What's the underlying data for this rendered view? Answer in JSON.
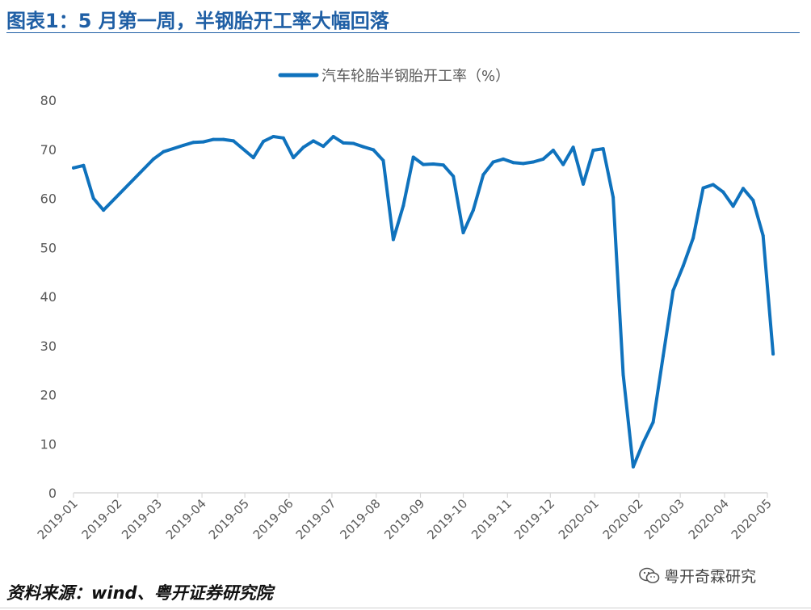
{
  "header": {
    "title": "图表1：5 月第一周，半钢胎开工率大幅回落"
  },
  "footer": {
    "source": "资料来源：wind、粤开证券研究院",
    "watermark": "粤开奇霖研究"
  },
  "colors": {
    "accent": "#1f5fa5",
    "line": "#0f72bd",
    "axis": "#d9d9d9",
    "tick_text": "#595959"
  },
  "icons": {
    "watermark_icon": "wechat-icon"
  },
  "chart_data": {
    "type": "line",
    "legend_position": "top-center",
    "grid": false,
    "ylim": [
      0,
      80
    ],
    "yticks": [
      "0",
      "10",
      "20",
      "30",
      "40",
      "50",
      "60",
      "70",
      "80"
    ],
    "xlim": [
      "2019-01-01",
      "2020-05-01"
    ],
    "xticks": [
      "2019-01",
      "2019-02",
      "2019-03",
      "2019-04",
      "2019-05",
      "2019-06",
      "2019-07",
      "2019-08",
      "2019-09",
      "2019-10",
      "2019-11",
      "2019-12",
      "2020-01",
      "2020-02",
      "2020-03",
      "2020-04",
      "2020-05"
    ],
    "series": [
      {
        "name": "汽车轮胎半钢胎开工率（%）",
        "color": "#0f72bd",
        "points": [
          [
            "2019-01-01",
            66.2
          ],
          [
            "2019-01-08",
            66.7
          ],
          [
            "2019-01-15",
            60.0
          ],
          [
            "2019-01-22",
            57.6
          ],
          [
            "2019-02-26",
            68.0
          ],
          [
            "2019-03-05",
            69.5
          ],
          [
            "2019-03-19",
            70.8
          ],
          [
            "2019-03-26",
            71.4
          ],
          [
            "2019-04-02",
            71.5
          ],
          [
            "2019-04-09",
            72.0
          ],
          [
            "2019-04-16",
            72.0
          ],
          [
            "2019-04-23",
            71.7
          ],
          [
            "2019-05-07",
            68.3
          ],
          [
            "2019-05-14",
            71.6
          ],
          [
            "2019-05-21",
            72.6
          ],
          [
            "2019-05-28",
            72.3
          ],
          [
            "2019-06-04",
            68.3
          ],
          [
            "2019-06-11",
            70.4
          ],
          [
            "2019-06-18",
            71.7
          ],
          [
            "2019-06-25",
            70.6
          ],
          [
            "2019-07-02",
            72.6
          ],
          [
            "2019-07-09",
            71.3
          ],
          [
            "2019-07-16",
            71.2
          ],
          [
            "2019-07-23",
            70.5
          ],
          [
            "2019-07-30",
            69.9
          ],
          [
            "2019-08-06",
            67.7
          ],
          [
            "2019-08-13",
            51.6
          ],
          [
            "2019-08-20",
            58.5
          ],
          [
            "2019-08-27",
            68.4
          ],
          [
            "2019-09-03",
            66.9
          ],
          [
            "2019-09-10",
            67.0
          ],
          [
            "2019-09-17",
            66.8
          ],
          [
            "2019-09-24",
            64.5
          ],
          [
            "2019-10-01",
            53.0
          ],
          [
            "2019-10-08",
            57.6
          ],
          [
            "2019-10-15",
            64.8
          ],
          [
            "2019-10-22",
            67.4
          ],
          [
            "2019-10-29",
            68.0
          ],
          [
            "2019-11-05",
            67.3
          ],
          [
            "2019-11-12",
            67.1
          ],
          [
            "2019-11-19",
            67.4
          ],
          [
            "2019-11-26",
            68.0
          ],
          [
            "2019-12-03",
            69.8
          ],
          [
            "2019-12-10",
            66.9
          ],
          [
            "2019-12-17",
            70.4
          ],
          [
            "2019-12-24",
            62.9
          ],
          [
            "2019-12-31",
            69.8
          ],
          [
            "2020-01-07",
            70.1
          ],
          [
            "2020-01-14",
            60.2
          ],
          [
            "2020-01-21",
            24.1
          ],
          [
            "2020-01-28",
            5.3
          ],
          [
            "2020-02-04",
            10.2
          ],
          [
            "2020-02-11",
            14.4
          ],
          [
            "2020-02-18",
            27.9
          ],
          [
            "2020-02-25",
            41.2
          ],
          [
            "2020-03-03",
            46.2
          ],
          [
            "2020-03-10",
            51.9
          ],
          [
            "2020-03-17",
            62.1
          ],
          [
            "2020-03-24",
            62.8
          ],
          [
            "2020-03-31",
            61.3
          ],
          [
            "2020-04-07",
            58.4
          ],
          [
            "2020-04-14",
            62.0
          ],
          [
            "2020-04-21",
            59.6
          ],
          [
            "2020-04-28",
            52.4
          ],
          [
            "2020-05-05",
            28.3
          ]
        ]
      }
    ]
  }
}
